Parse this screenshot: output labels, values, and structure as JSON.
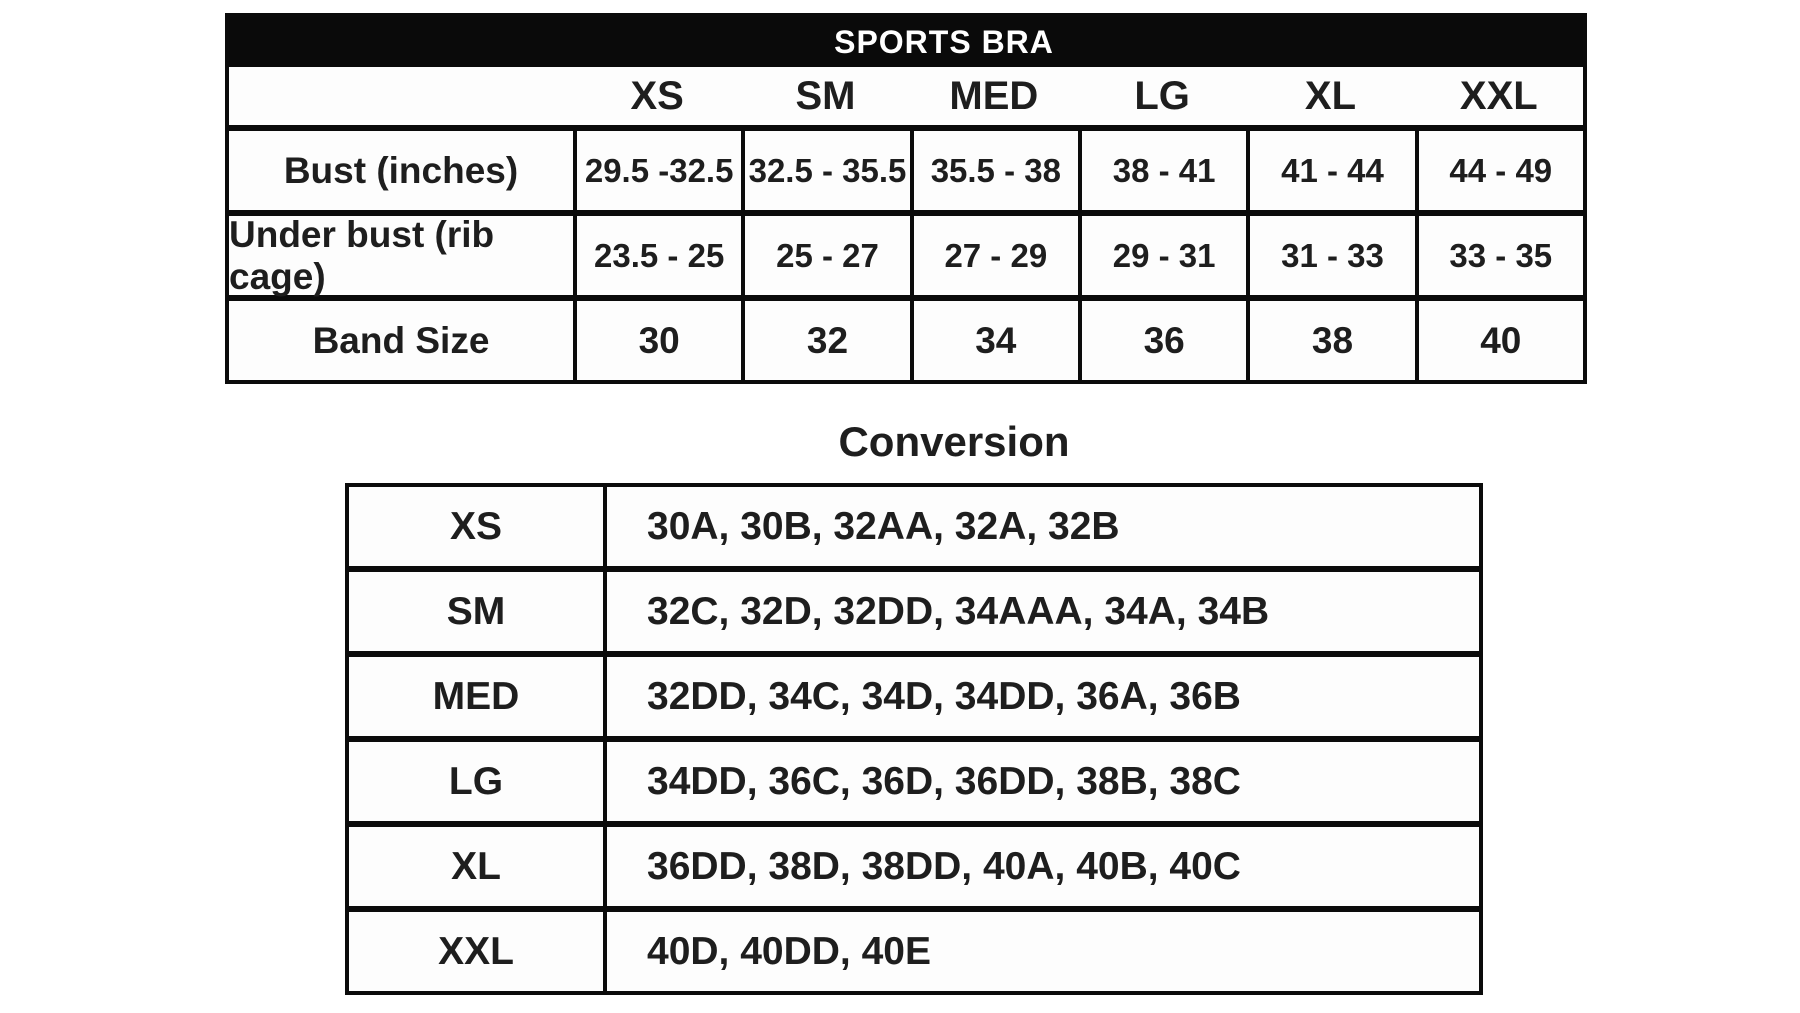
{
  "page": {
    "background": "#ffffff",
    "text_color": "#1e1e1e",
    "border_color": "#0b0b0b",
    "header_bar_color": "#0a0a0a",
    "header_bar_text_color": "#ffffff"
  },
  "chart_data": [
    {
      "type": "table",
      "name": "sports-bra-size-chart",
      "title": "SPORTS BRA",
      "columns": [
        "XS",
        "SM",
        "MED",
        "LG",
        "XL",
        "XXL"
      ],
      "rows": [
        {
          "label": "Bust (inches)",
          "values": [
            "29.5 -32.5",
            "32.5 - 35.5",
            "35.5 - 38",
            "38 - 41",
            "41 - 44",
            "44 - 49"
          ]
        },
        {
          "label": "Under bust (rib cage)",
          "values": [
            "23.5 - 25",
            "25 - 27",
            "27 - 29",
            "29 - 31",
            "31 - 33",
            "33 - 35"
          ]
        },
        {
          "label": "Band Size",
          "values": [
            "30",
            "32",
            "34",
            "36",
            "38",
            "40"
          ]
        }
      ]
    },
    {
      "type": "table",
      "name": "conversion-chart",
      "title": "Conversion",
      "rows": [
        {
          "label": "XS",
          "value": "30A, 30B, 32AA, 32A, 32B"
        },
        {
          "label": "SM",
          "value": "32C, 32D, 32DD, 34AAA, 34A, 34B"
        },
        {
          "label": "MED",
          "value": "32DD, 34C, 34D, 34DD, 36A, 36B"
        },
        {
          "label": "LG",
          "value": "34DD, 36C, 36D, 36DD, 38B, 38C"
        },
        {
          "label": "XL",
          "value": "36DD, 38D, 38DD, 40A, 40B, 40C"
        },
        {
          "label": "XXL",
          "value": "40D, 40DD, 40E"
        }
      ]
    }
  ]
}
